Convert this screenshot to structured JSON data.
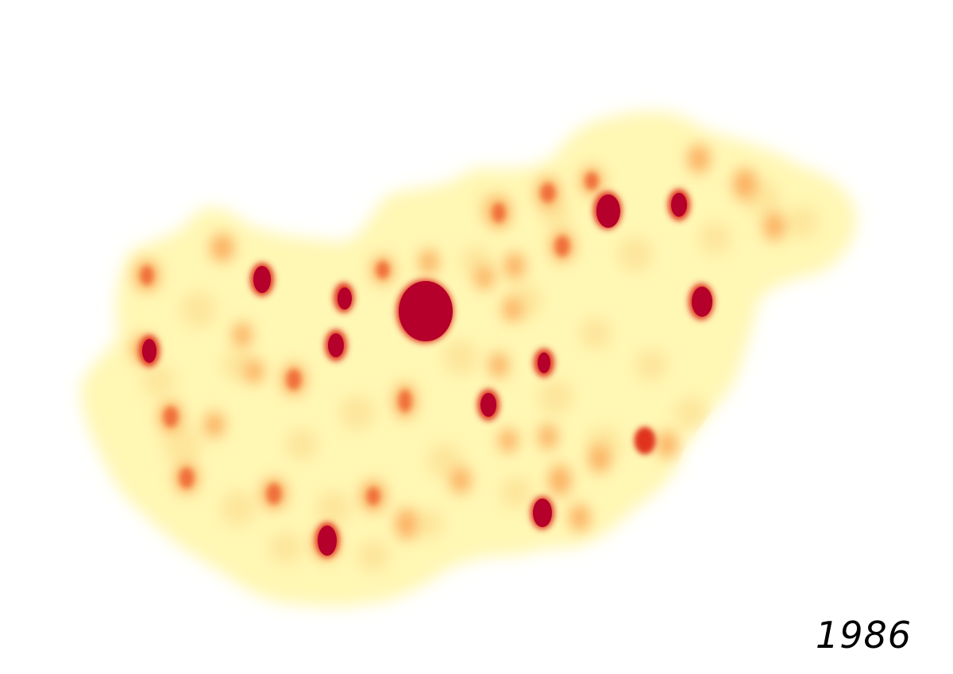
{
  "map": {
    "year_label": "1986",
    "colors": {
      "background": "#ffffff",
      "low": "#fff6b0",
      "mid_low": "#fde79a",
      "mid": "#fdc26e",
      "mid_high": "#f57d3e",
      "high": "#e2321f",
      "peak": "#b7002a"
    }
  }
}
